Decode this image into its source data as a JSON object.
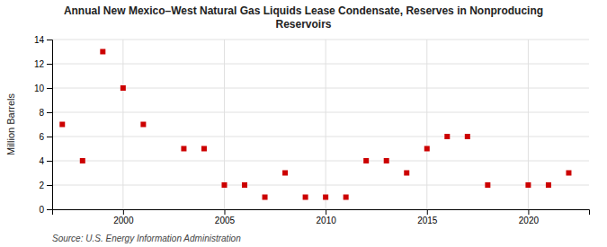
{
  "chart_data": {
    "type": "scatter",
    "title": "Annual New Mexico–West Natural Gas Liquids Lease Condensate, Reserves in Nonproducing\nReservoirs",
    "ylabel": "Million Barrels",
    "source": "Source: U.S. Energy Information Administration",
    "x": [
      1997,
      1998,
      1999,
      2000,
      2001,
      2003,
      2004,
      2005,
      2006,
      2007,
      2008,
      2009,
      2010,
      2011,
      2012,
      2013,
      2014,
      2015,
      2016,
      2017,
      2018,
      2020,
      2021,
      2022
    ],
    "values": [
      7,
      4,
      13,
      10,
      7,
      5,
      5,
      2,
      2,
      1,
      3,
      1,
      1,
      1,
      4,
      4,
      3,
      5,
      6,
      6,
      2,
      2,
      2,
      3
    ],
    "color": "#cc0000",
    "marker": "square",
    "xlim": [
      1996.5,
      2023
    ],
    "ylim": [
      0,
      14
    ],
    "xticks": [
      2000,
      2005,
      2010,
      2015,
      2020
    ],
    "yticks": [
      0,
      2,
      4,
      6,
      8,
      10,
      12,
      14
    ],
    "grid": true
  }
}
